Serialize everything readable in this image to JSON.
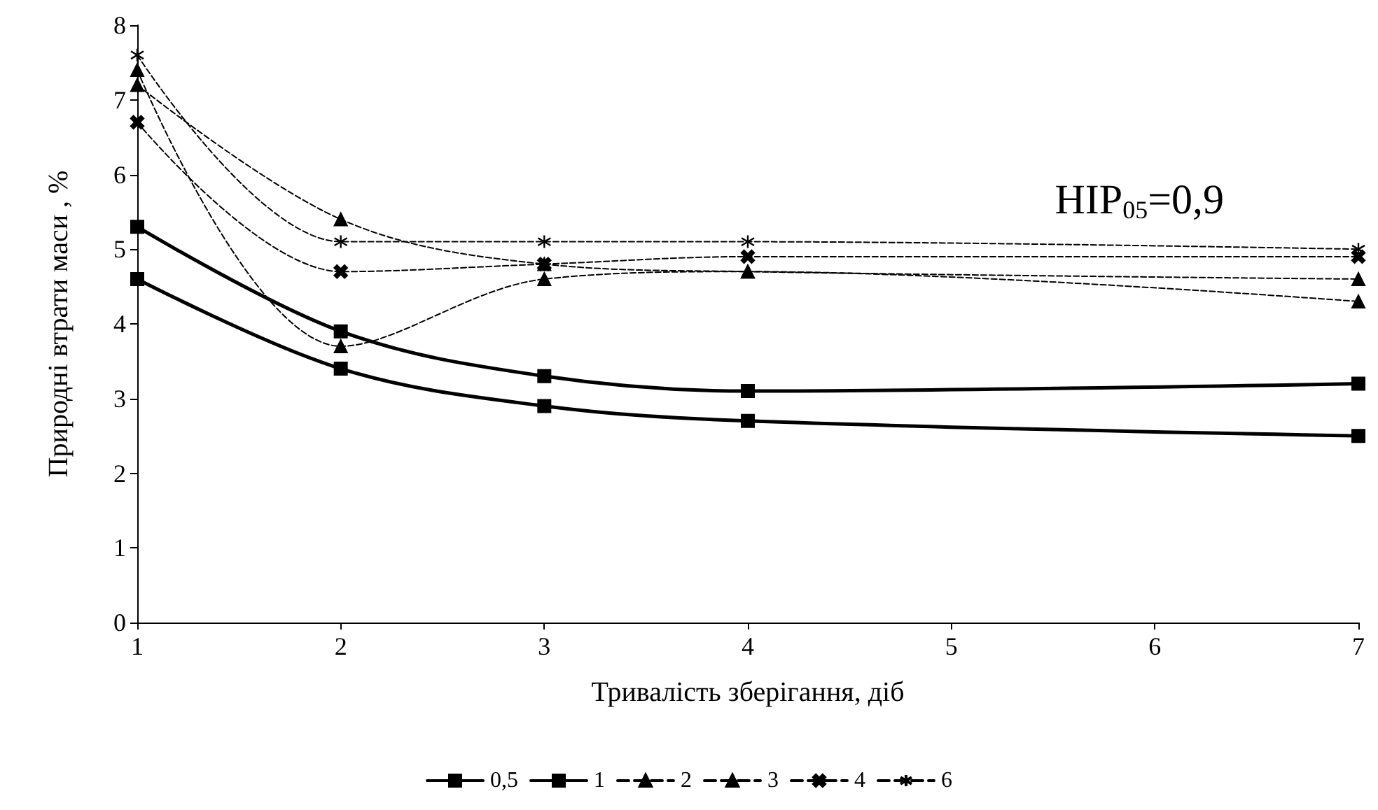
{
  "chart_data": {
    "type": "line",
    "xlabel": "Тривалість зберігання, діб",
    "ylabel": "Природні втрати маси , %",
    "annotations": [
      "HIP$_{05}$=0,9"
    ],
    "x": [
      1,
      2,
      3,
      4,
      7
    ],
    "xlim": [
      1,
      7
    ],
    "xticks": [
      1,
      2,
      3,
      4,
      5,
      6,
      7
    ],
    "ylim": [
      0,
      8
    ],
    "yticks": [
      0,
      1,
      2,
      3,
      4,
      5,
      6,
      7,
      8
    ],
    "grid": false,
    "legend": "bottom",
    "series": [
      {
        "name": "0,5",
        "color": "#000000",
        "marker": "square",
        "line_style": "solid",
        "values": [
          4.6,
          3.4,
          2.9,
          2.7,
          2.5
        ]
      },
      {
        "name": "1",
        "color": "#000000",
        "marker": "square",
        "line_style": "solid",
        "values": [
          5.3,
          3.9,
          3.3,
          3.1,
          3.2
        ]
      },
      {
        "name": "2",
        "color": "#000000",
        "marker": "triangle",
        "line_style": "dashed",
        "values": [
          7.4,
          3.7,
          4.6,
          4.7,
          4.3
        ]
      },
      {
        "name": "3",
        "color": "#000000",
        "marker": "triangle",
        "line_style": "dashed",
        "values": [
          7.2,
          5.4,
          4.8,
          4.7,
          4.6
        ]
      },
      {
        "name": "4",
        "color": "#000000",
        "marker": "cross",
        "line_style": "dashed",
        "values": [
          6.7,
          4.7,
          4.8,
          4.9,
          4.9
        ]
      },
      {
        "name": "6",
        "color": "#000000",
        "marker": "star",
        "line_style": "dashed",
        "values": [
          7.6,
          5.1,
          5.1,
          5.1,
          5.0
        ]
      }
    ]
  }
}
